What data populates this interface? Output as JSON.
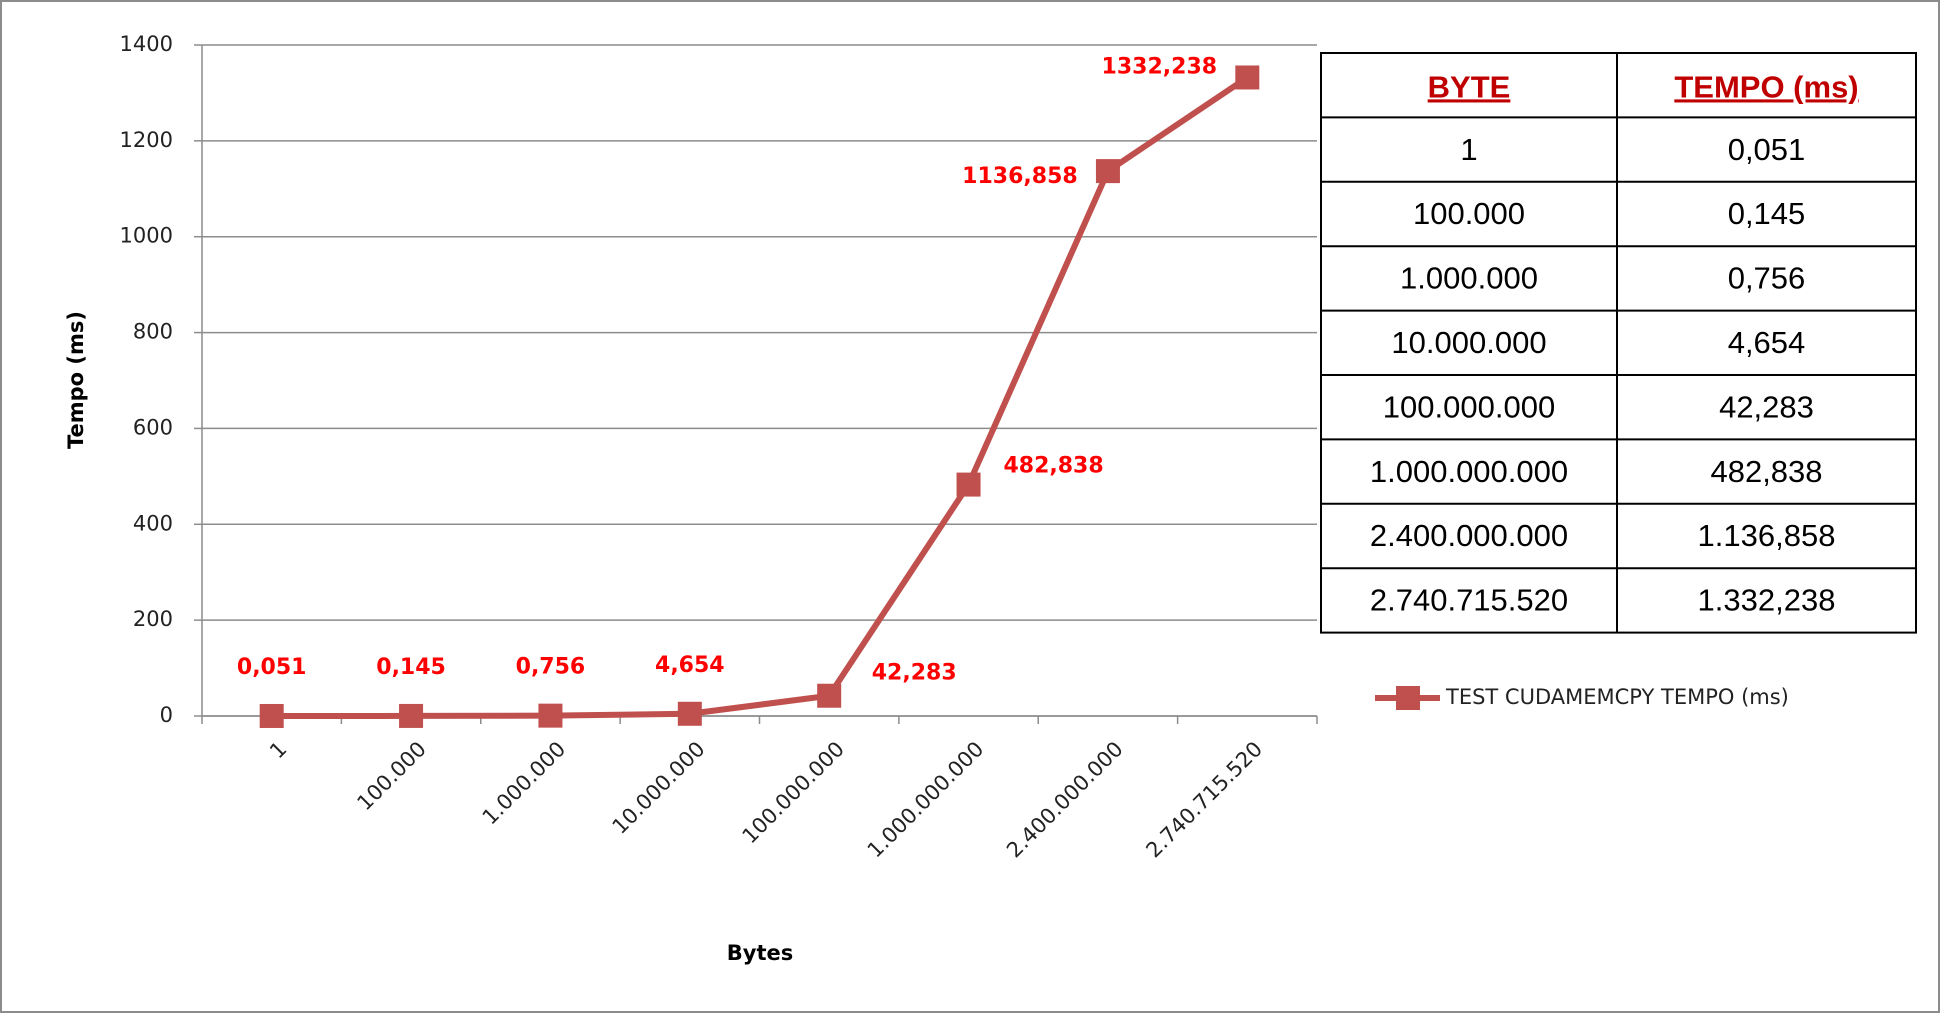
{
  "chart_data": {
    "type": "line",
    "categories": [
      "1",
      "100.000",
      "1.000.000",
      "10.000.000",
      "100.000.000",
      "1.000.000.000",
      "2.400.000.000",
      "2.740.715.520"
    ],
    "series": [
      {
        "name": "TEST CUDAMEMCPY TEMPO (ms)",
        "color": "#c0504d",
        "values": [
          0.051,
          0.145,
          0.756,
          4.654,
          42.283,
          482.838,
          1136.858,
          1332.238
        ],
        "value_labels": [
          "0,051",
          "0,145",
          "0,756",
          "4,654",
          "42,283",
          "482,838",
          "1136,858",
          "1332,238"
        ]
      }
    ],
    "ylim": [
      0,
      1400
    ],
    "yticks": [
      0,
      200,
      400,
      600,
      800,
      1000,
      1200,
      1400
    ],
    "xlabel": "Bytes",
    "ylabel": "Tempo (ms)",
    "grid": true,
    "legend": "right"
  },
  "table": {
    "header": [
      "BYTE",
      "TEMPO (ms)"
    ],
    "rows": [
      [
        "1",
        "0,051"
      ],
      [
        "100.000",
        "0,145"
      ],
      [
        "1.000.000",
        "0,756"
      ],
      [
        "10.000.000",
        "4,654"
      ],
      [
        "100.000.000",
        "42,283"
      ],
      [
        "1.000.000.000",
        "482,838"
      ],
      [
        "2.400.000.000",
        "1.136,858"
      ],
      [
        "2.740.715.520",
        "1.332,238"
      ]
    ]
  }
}
